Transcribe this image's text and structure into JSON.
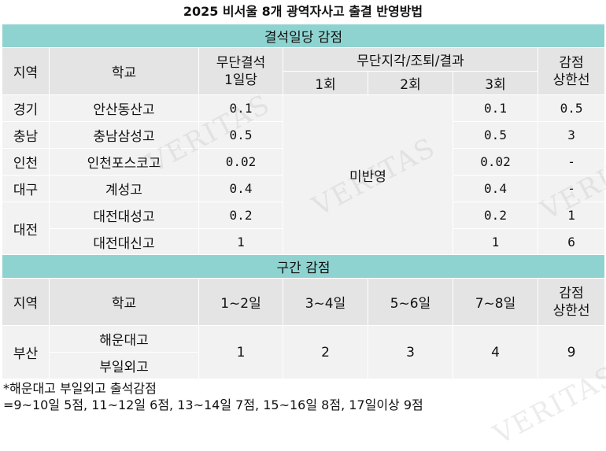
{
  "title": "2025 비서울 8개 광역자사고 출결 반영방법",
  "section1": {
    "banner": "결석일당 감점",
    "headers": {
      "region": "지역",
      "school": "학교",
      "absence_line1": "무단결석",
      "absence_line2": "1일당",
      "tardy_group": "무단지각/조퇴/결과",
      "tardy_1": "1회",
      "tardy_2": "2회",
      "tardy_3": "3회",
      "cap_line1": "감점",
      "cap_line2": "상한선"
    },
    "not_applied": "미반영",
    "rows": [
      {
        "region": "경기",
        "school": "안산동산고",
        "absence": "0.1",
        "tardy3": "0.1",
        "cap": "0.5"
      },
      {
        "region": "충남",
        "school": "충남삼성고",
        "absence": "0.5",
        "tardy3": "0.5",
        "cap": "3"
      },
      {
        "region": "인천",
        "school": "인천포스코고",
        "absence": "0.02",
        "tardy3": "0.02",
        "cap": "-"
      },
      {
        "region": "대구",
        "school": "계성고",
        "absence": "0.4",
        "tardy3": "0.4",
        "cap": "-"
      },
      {
        "region": "대전",
        "school": "대전대성고",
        "absence": "0.2",
        "tardy3": "0.2",
        "cap": "1"
      },
      {
        "region": "",
        "school": "대전대신고",
        "absence": "1",
        "tardy3": "1",
        "cap": "6"
      }
    ]
  },
  "section2": {
    "banner": "구간 감점",
    "headers": {
      "region": "지역",
      "school": "학교",
      "range1": "1~2일",
      "range2": "3~4일",
      "range3": "5~6일",
      "range4": "7~8일",
      "cap_line1": "감점",
      "cap_line2": "상한선"
    },
    "region": "부산",
    "schools": [
      "해운대고",
      "부일외고"
    ],
    "values": [
      "1",
      "2",
      "3",
      "4",
      "9"
    ]
  },
  "notes": {
    "line1": "*해운대고 부일외고 출석감점",
    "line2": " =9~10일 5점, 11~12일 6점, 13~14일 7점, 15~16일 8점, 17일이상 9점"
  },
  "watermark": "VERITAS"
}
